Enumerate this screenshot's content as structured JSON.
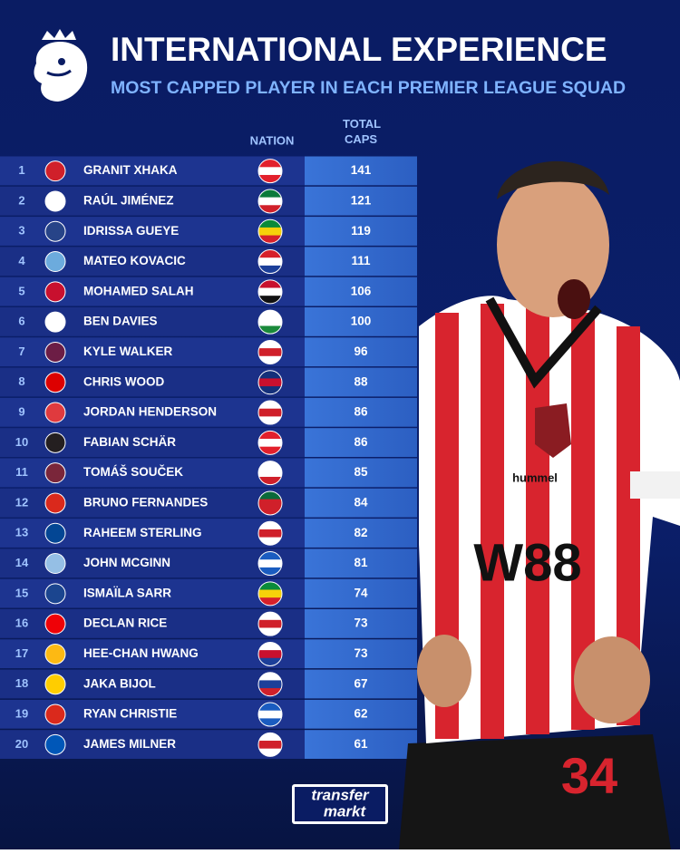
{
  "header": {
    "title": "INTERNATIONAL EXPERIENCE",
    "subtitle": "MOST CAPPED PLAYER IN EACH PREMIER LEAGUE SQUAD"
  },
  "table": {
    "headers": [
      "NATION",
      "TOTAL CAPS"
    ],
    "rows": [
      [
        1,
        "GRANIT XHAKA",
        141
      ],
      [
        2,
        "RAÚL JIMÉNEZ",
        121
      ],
      [
        3,
        "IDRISSA GUEYE",
        119
      ],
      [
        4,
        "MATEO KOVACIC",
        111
      ],
      [
        5,
        "MOHAMED SALAH",
        106
      ],
      [
        6,
        "BEN DAVIES",
        100
      ],
      [
        7,
        "KYLE WALKER",
        96
      ],
      [
        8,
        "CHRIS WOOD",
        88
      ],
      [
        9,
        "JORDAN HENDERSON",
        86
      ],
      [
        10,
        "FABIAN SCHÄR",
        86
      ],
      [
        11,
        "TOMÁŠ SOUČEK",
        85
      ],
      [
        12,
        "BRUNO FERNANDES",
        84
      ],
      [
        13,
        "RAHEEM STERLING",
        82
      ],
      [
        14,
        "JOHN MCGINN",
        81
      ],
      [
        15,
        "ISMAÏLA SARR",
        74
      ],
      [
        16,
        "DECLAN RICE",
        73
      ],
      [
        17,
        "HEE-CHAN HWANG",
        73
      ],
      [
        18,
        "JAKA BIJOL",
        67
      ],
      [
        19,
        "RYAN CHRISTIE",
        62
      ],
      [
        20,
        "JAMES MILNER",
        61
      ]
    ]
  },
  "photo": {
    "shirt_brand": "hummel",
    "sponsor": "W88",
    "number": "34"
  },
  "footer": {
    "logo_top": "transfer",
    "logo_bottom": "markt"
  }
}
